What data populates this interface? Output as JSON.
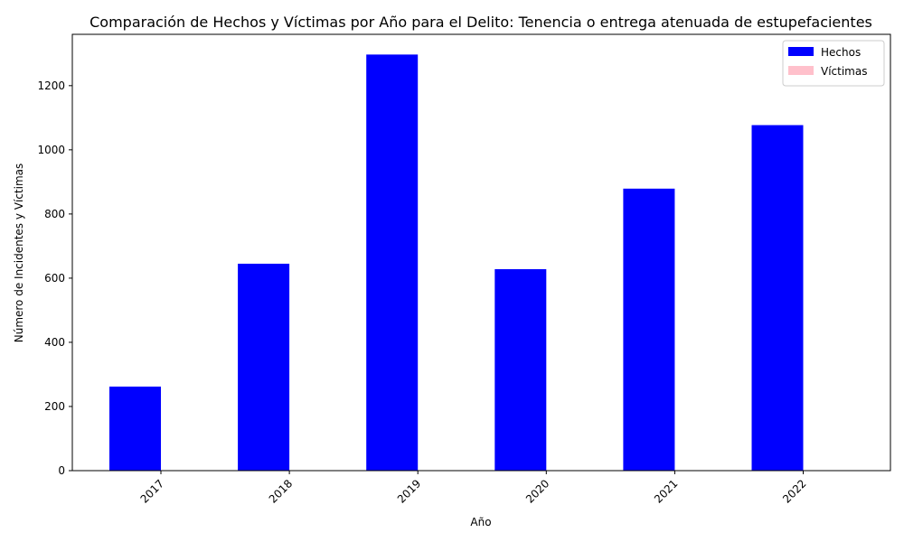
{
  "chart_data": {
    "type": "bar",
    "title": "Comparación de Hechos y Víctimas por Año para el Delito: Tenencia o entrega atenuada de estupefacientes",
    "xlabel": "Año",
    "ylabel": "Número de Incidentes y Víctimas",
    "categories": [
      "2017",
      "2018",
      "2019",
      "2020",
      "2021",
      "2022"
    ],
    "series": [
      {
        "name": "Hechos",
        "color": "#0000ff",
        "values": [
          262,
          645,
          1297,
          628,
          879,
          1077
        ]
      },
      {
        "name": "Víctimas",
        "color": "#ffc0cb",
        "values": [
          0,
          0,
          0,
          0,
          0,
          0
        ]
      }
    ],
    "ylim": [
      0,
      1360
    ],
    "yticks": [
      0,
      200,
      400,
      600,
      800,
      1000,
      1200
    ],
    "ytick_labels": [
      "0",
      "200",
      "400",
      "600",
      "800",
      "1000",
      "1200"
    ],
    "grid": false,
    "legend_position": "top-right"
  }
}
